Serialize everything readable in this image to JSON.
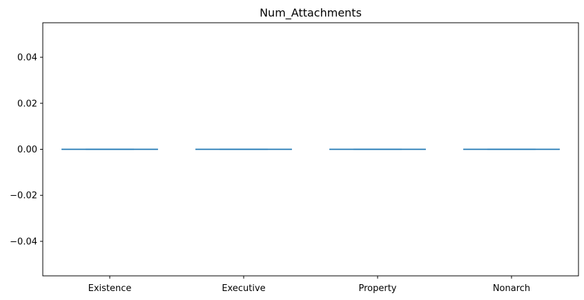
{
  "chart_data": {
    "type": "box",
    "title": "Num_Attachments",
    "xlabel": "",
    "ylabel": "",
    "categories": [
      "Existence",
      "Executive",
      "Property",
      "Nonarch"
    ],
    "values": [
      0,
      0,
      0,
      0
    ],
    "ylim": [
      -0.055,
      0.055
    ],
    "yticks": [
      -0.04,
      -0.02,
      0.0,
      0.02,
      0.04
    ],
    "ytick_labels": [
      "−0.04",
      "−0.02",
      "0.00",
      "0.02",
      "0.04"
    ],
    "grid": false,
    "line_color": "#1f77b4"
  }
}
